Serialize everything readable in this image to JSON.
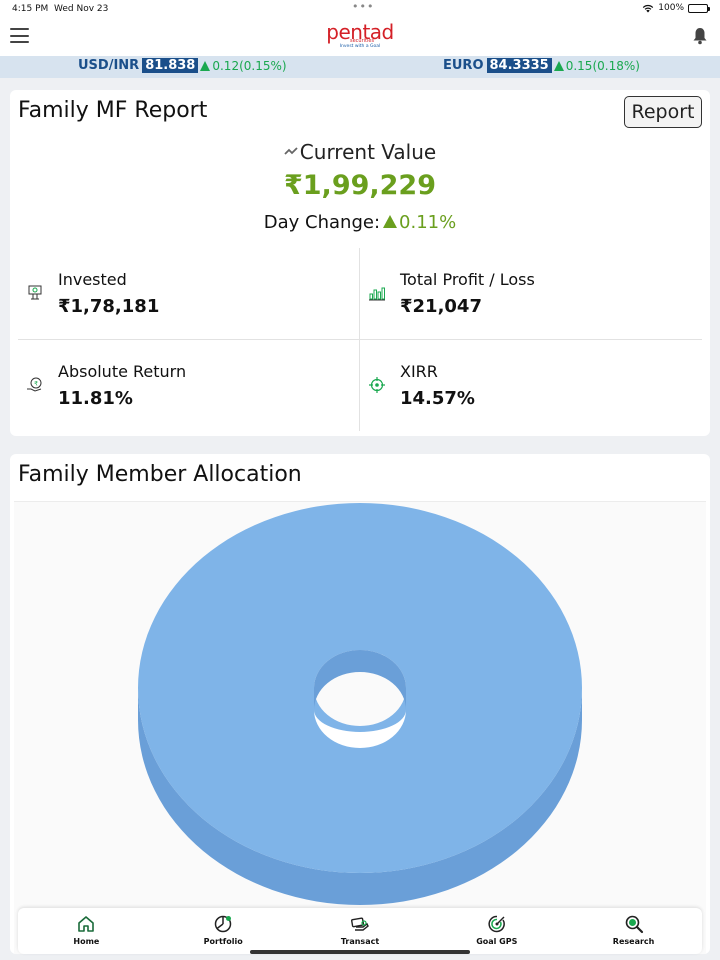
{
  "status_bar": {
    "time": "4:15 PM",
    "date": "Wed Nov 23",
    "battery": "100%"
  },
  "app": {
    "logo_text": "pentad",
    "logo_sub": "securities",
    "logo_tagline": "Invest with a Goal"
  },
  "ticker": [
    {
      "pair": "USD/INR",
      "rate": "81.838",
      "change": "0.12(0.15%)"
    },
    {
      "pair": "EURO",
      "rate": "84.3335",
      "change": "0.15(0.18%)"
    }
  ],
  "report": {
    "title": "Family MF Report",
    "button_label": "Report",
    "current_value_label": "Current Value",
    "current_value": "₹1,99,229",
    "day_change_label": "Day Change:",
    "day_change_value": "0.11%",
    "stats": [
      {
        "label": "Invested",
        "value": "₹1,78,181",
        "icon": "invested-icon"
      },
      {
        "label": "Total Profit / Loss",
        "value": "₹21,047",
        "icon": "bar-chart-icon"
      },
      {
        "label": "Absolute Return",
        "value": "11.81%",
        "icon": "rupee-hand-icon"
      },
      {
        "label": "XIRR",
        "value": "14.57%",
        "icon": "target-icon"
      }
    ]
  },
  "allocation": {
    "title": "Family Member Allocation",
    "chart_data": {
      "type": "pie",
      "donut": true,
      "slices": [
        {
          "value": 100,
          "color": "#7fb4e8"
        }
      ]
    }
  },
  "nav": [
    {
      "label": "Home",
      "icon": "home-icon"
    },
    {
      "label": "Portfolio",
      "icon": "pie-icon"
    },
    {
      "label": "Transact",
      "icon": "hand-card-icon"
    },
    {
      "label": "Goal GPS",
      "icon": "goal-icon"
    },
    {
      "label": "Research",
      "icon": "magnifier-icon"
    }
  ],
  "colors": {
    "brand_red": "#d42027",
    "brand_blue": "#1b4f8a",
    "positive_green": "#6a9f1e",
    "ticker_green": "#1aa84f",
    "chart_blue": "#7fb4e8"
  }
}
